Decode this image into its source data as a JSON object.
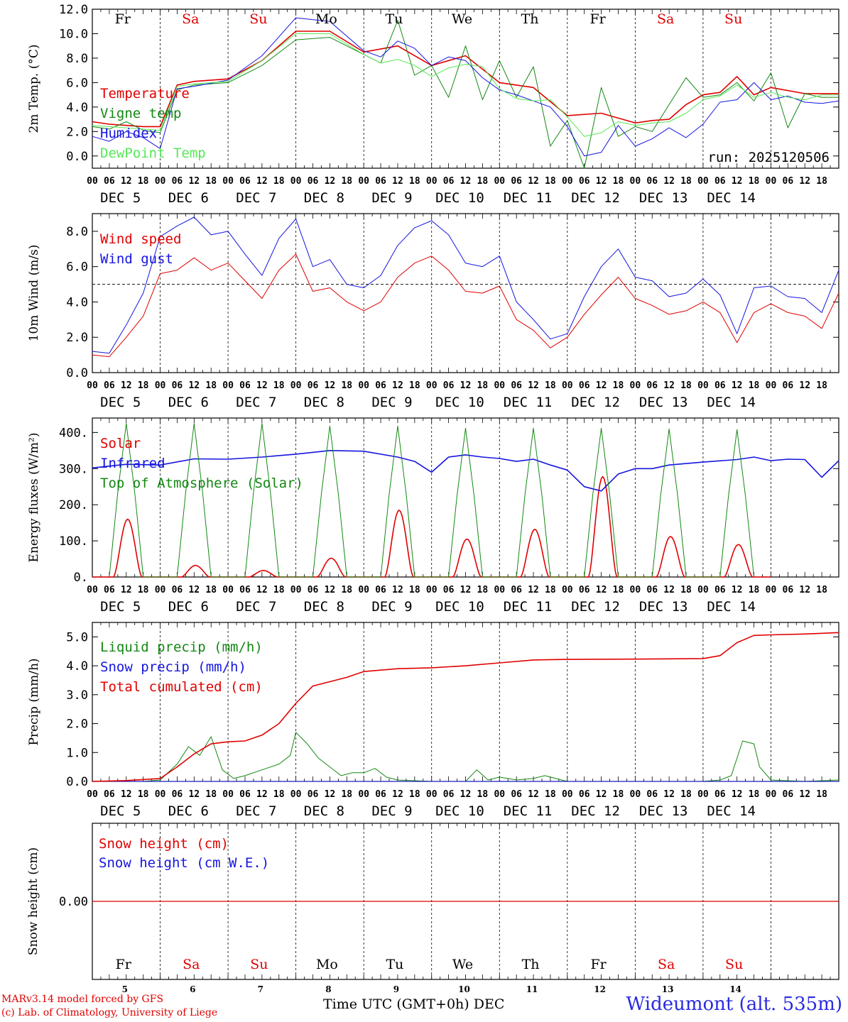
{
  "chart_data": [
    {
      "type": "line",
      "panel": "temperature",
      "ylabel": "2m Temp. (°C)",
      "ylim": [
        -1.0,
        12.0
      ],
      "yticks": [
        "0.0",
        "2.0",
        "4.0",
        "6.0",
        "8.0",
        "10.0",
        "12.0"
      ],
      "ytick_values": [
        0,
        2,
        4,
        6,
        8,
        10,
        12
      ],
      "annotation": "run: 2025120506",
      "series": [
        {
          "name": "Temperature",
          "color": "#e00000",
          "t": [
            0,
            6,
            12,
            18,
            24,
            30,
            36,
            48,
            60,
            72,
            84,
            96,
            108,
            120,
            132,
            144,
            156,
            168,
            180,
            192,
            198,
            204,
            210,
            216,
            222,
            228,
            234,
            240,
            252,
            264
          ],
          "values": [
            2.8,
            2.6,
            2.5,
            2.4,
            2.4,
            5.8,
            6.1,
            6.3,
            7.8,
            10.2,
            10.2,
            8.5,
            9.0,
            7.4,
            8.2,
            6.0,
            5.6,
            3.3,
            3.5,
            2.7,
            2.9,
            3.0,
            4.2,
            5.0,
            5.2,
            6.5,
            5.0,
            5.6,
            5.1,
            5.1
          ]
        },
        {
          "name": "Vigne temp",
          "color": "#138813",
          "t": [
            0,
            6,
            12,
            18,
            24,
            30,
            36,
            48,
            60,
            72,
            84,
            96,
            102,
            108,
            114,
            120,
            126,
            132,
            138,
            144,
            150,
            156,
            162,
            168,
            174,
            180,
            186,
            192,
            198,
            204,
            210,
            216,
            222,
            228,
            234,
            240,
            246,
            252,
            258,
            264
          ],
          "values": [
            2.4,
            2.2,
            2.8,
            2.1,
            1.9,
            5.4,
            5.8,
            6.0,
            7.4,
            9.5,
            9.7,
            8.3,
            7.6,
            11.1,
            6.6,
            7.4,
            4.8,
            9.0,
            4.6,
            7.8,
            4.8,
            7.3,
            0.8,
            2.9,
            -1.1,
            5.6,
            1.6,
            2.4,
            2.0,
            4.2,
            6.4,
            4.8,
            5.0,
            6.0,
            4.5,
            6.8,
            2.3,
            5.1,
            4.8,
            4.8
          ]
        },
        {
          "name": "Humidex",
          "color": "#1515e0",
          "t": [
            0,
            6,
            12,
            18,
            24,
            30,
            36,
            48,
            60,
            72,
            84,
            96,
            102,
            108,
            114,
            120,
            126,
            132,
            138,
            144,
            150,
            156,
            162,
            168,
            174,
            180,
            186,
            192,
            198,
            204,
            210,
            216,
            222,
            228,
            234,
            240,
            246,
            252,
            258,
            264
          ],
          "values": [
            1.6,
            1.2,
            2.0,
            1.5,
            0.6,
            5.5,
            5.7,
            6.2,
            8.2,
            11.3,
            11.0,
            8.6,
            8.1,
            9.4,
            8.8,
            7.4,
            8.1,
            7.8,
            6.4,
            5.4,
            5.0,
            4.5,
            4.0,
            2.4,
            0.0,
            0.3,
            2.5,
            0.8,
            1.4,
            2.3,
            1.5,
            2.6,
            4.4,
            4.6,
            6.0,
            4.6,
            4.9,
            4.4,
            4.3,
            4.5
          ]
        },
        {
          "name": "DewPoint Temp",
          "color": "#55e855",
          "t": [
            0,
            6,
            12,
            18,
            24,
            30,
            36,
            48,
            60,
            72,
            84,
            96,
            102,
            108,
            114,
            120,
            126,
            132,
            138,
            144,
            150,
            156,
            162,
            168,
            174,
            180,
            186,
            192,
            198,
            204,
            210,
            216,
            222,
            228,
            234,
            240,
            246,
            252,
            258,
            264
          ],
          "values": [
            2.5,
            2.4,
            2.3,
            2.2,
            2.1,
            5.7,
            5.9,
            6.1,
            7.8,
            10.0,
            10.0,
            8.3,
            7.6,
            7.9,
            7.4,
            6.5,
            7.2,
            7.5,
            7.3,
            5.5,
            4.7,
            4.5,
            4.6,
            3.2,
            1.6,
            1.9,
            2.8,
            2.5,
            2.7,
            2.8,
            3.5,
            4.6,
            4.9,
            5.8,
            4.8,
            5.2,
            4.8,
            4.6,
            5.0,
            5.0
          ]
        }
      ]
    },
    {
      "type": "line",
      "panel": "wind",
      "ylabel": "10m Wind (m/s)",
      "ylim": [
        0.0,
        9.0
      ],
      "yticks": [
        "0.0",
        "2.0",
        "4.0",
        "6.0",
        "8.0"
      ],
      "ytick_values": [
        0,
        2,
        4,
        6,
        8
      ],
      "reference_line": 5.0,
      "series": [
        {
          "name": "Wind speed",
          "color": "#e00000",
          "t": [
            0,
            6,
            12,
            18,
            24,
            30,
            36,
            42,
            48,
            54,
            60,
            66,
            72,
            78,
            84,
            90,
            96,
            102,
            108,
            114,
            120,
            126,
            132,
            138,
            144,
            150,
            156,
            162,
            168,
            174,
            180,
            186,
            192,
            198,
            204,
            210,
            216,
            222,
            228,
            234,
            240,
            246,
            252,
            258,
            264
          ],
          "values": [
            1.0,
            0.9,
            2.0,
            3.2,
            5.6,
            5.8,
            6.5,
            5.8,
            6.2,
            5.2,
            4.2,
            5.8,
            6.7,
            4.6,
            4.8,
            4.0,
            3.5,
            4.0,
            5.4,
            6.2,
            6.6,
            5.8,
            4.6,
            4.5,
            4.9,
            3.0,
            2.4,
            1.4,
            2.0,
            3.3,
            4.4,
            5.4,
            4.2,
            3.8,
            3.3,
            3.5,
            4.0,
            3.4,
            1.7,
            3.4,
            3.9,
            3.4,
            3.2,
            2.5,
            4.5
          ]
        },
        {
          "name": "Wind gust",
          "color": "#1515e0",
          "t": [
            0,
            6,
            12,
            18,
            24,
            30,
            36,
            42,
            48,
            54,
            60,
            66,
            72,
            78,
            84,
            90,
            96,
            102,
            108,
            114,
            120,
            126,
            132,
            138,
            144,
            150,
            156,
            162,
            168,
            174,
            180,
            186,
            192,
            198,
            204,
            210,
            216,
            222,
            228,
            234,
            240,
            246,
            252,
            258,
            264
          ],
          "values": [
            1.2,
            1.1,
            2.7,
            4.5,
            7.7,
            8.3,
            8.8,
            7.8,
            8.0,
            6.7,
            5.5,
            7.6,
            8.7,
            6.0,
            6.4,
            5.0,
            4.8,
            5.5,
            7.2,
            8.2,
            8.6,
            7.8,
            6.2,
            6.0,
            6.6,
            4.0,
            3.0,
            1.9,
            2.2,
            4.3,
            6.0,
            7.0,
            5.4,
            5.2,
            4.3,
            4.5,
            5.3,
            4.4,
            2.2,
            4.8,
            4.9,
            4.3,
            4.2,
            3.4,
            5.8
          ]
        }
      ]
    },
    {
      "type": "line",
      "panel": "energy",
      "ylabel": "Energy fluxes (W/m²)",
      "ylim": [
        0,
        440
      ],
      "yticks": [
        "0.",
        "100.",
        "200.",
        "300.",
        "400."
      ],
      "ytick_values": [
        0,
        100,
        200,
        300,
        400
      ],
      "series": [
        {
          "name": "Solar",
          "color": "#e00000",
          "peaks": [
            160,
            32,
            18,
            52,
            185,
            105,
            132,
            278,
            112,
            90
          ]
        },
        {
          "name": "Infrared",
          "color": "#1515e0",
          "t": [
            0,
            12,
            24,
            36,
            48,
            60,
            72,
            84,
            96,
            108,
            114,
            120,
            126,
            132,
            138,
            144,
            150,
            156,
            162,
            168,
            174,
            180,
            186,
            192,
            198,
            204,
            216,
            228,
            234,
            240,
            246,
            252,
            258,
            264
          ],
          "values": [
            302,
            312,
            310,
            327,
            326,
            332,
            340,
            350,
            348,
            332,
            320,
            290,
            332,
            338,
            332,
            328,
            320,
            326,
            310,
            296,
            250,
            238,
            285,
            300,
            300,
            310,
            318,
            325,
            332,
            322,
            326,
            325,
            276,
            322
          ]
        },
        {
          "name": "Top of Atmosphere (Solar)",
          "color": "#138813",
          "peaks": [
            425,
            425,
            425,
            418,
            418,
            412,
            412,
            412,
            410,
            408
          ]
        }
      ]
    },
    {
      "type": "line",
      "panel": "precip",
      "ylabel": "Precip (mm/h)",
      "ylim": [
        0.0,
        5.5
      ],
      "yticks": [
        "0.0",
        "1.0",
        "2.0",
        "3.0",
        "4.0",
        "5.0"
      ],
      "ytick_values": [
        0,
        1,
        2,
        3,
        4,
        5
      ],
      "series": [
        {
          "name": "Liquid precip (mm/h)",
          "color": "#138813",
          "t": [
            0,
            18,
            24,
            30,
            34,
            38,
            42,
            46,
            50,
            54,
            60,
            66,
            70,
            72,
            76,
            80,
            84,
            88,
            92,
            96,
            100,
            104,
            108,
            120,
            132,
            136,
            140,
            144,
            150,
            156,
            160,
            168,
            192,
            204,
            216,
            222,
            226,
            230,
            234,
            236,
            240,
            252,
            264
          ],
          "values": [
            0,
            0,
            0.05,
            0.6,
            1.2,
            0.9,
            1.55,
            0.4,
            0.1,
            0.2,
            0.4,
            0.6,
            0.9,
            1.7,
            1.3,
            0.8,
            0.5,
            0.2,
            0.3,
            0.3,
            0.45,
            0.15,
            0.05,
            0,
            0,
            0.4,
            0.05,
            0.15,
            0.05,
            0.1,
            0.2,
            0,
            0,
            0,
            0,
            0.05,
            0.2,
            1.4,
            1.3,
            0.5,
            0.05,
            0,
            0.05
          ]
        },
        {
          "name": "Snow precip (mm/h)",
          "color": "#1515e0",
          "t": [
            0,
            264
          ],
          "values": [
            0,
            0
          ]
        },
        {
          "name": "Total cumulated (cm)",
          "color": "#e00000",
          "t": [
            0,
            12,
            24,
            30,
            36,
            42,
            48,
            54,
            60,
            66,
            72,
            78,
            84,
            90,
            96,
            108,
            120,
            132,
            144,
            156,
            168,
            192,
            216,
            222,
            228,
            234,
            240,
            252,
            264
          ],
          "values": [
            0,
            0.03,
            0.1,
            0.5,
            0.95,
            1.3,
            1.37,
            1.4,
            1.6,
            2.0,
            2.7,
            3.3,
            3.45,
            3.6,
            3.8,
            3.9,
            3.93,
            4.0,
            4.1,
            4.2,
            4.22,
            4.23,
            4.25,
            4.35,
            4.8,
            5.05,
            5.07,
            5.1,
            5.15
          ]
        }
      ]
    },
    {
      "type": "line",
      "panel": "snow",
      "ylabel": "Snow height (cm)",
      "ylim": [
        -1,
        1
      ],
      "yticks": [
        "0.00"
      ],
      "ytick_values": [
        0
      ],
      "series": [
        {
          "name": "Snow height (cm)",
          "color": "#e00000",
          "t": [
            0,
            264
          ],
          "values": [
            0,
            0
          ]
        },
        {
          "name": "Snow height (cm W.E.)",
          "color": "#1515e0",
          "t": [
            0,
            264
          ],
          "values": [
            0,
            0
          ]
        }
      ]
    }
  ],
  "axis": {
    "hour_ticks": [
      "00",
      "06",
      "12",
      "18"
    ],
    "end_tick": "00",
    "dates": [
      "DEC  5",
      "DEC  6",
      "DEC  7",
      "DEC  8",
      "DEC  9",
      "DEC 10",
      "DEC 11",
      "DEC 12",
      "DEC 13",
      "DEC 14"
    ],
    "day_names": [
      "Fr",
      "Sa",
      "Su",
      "Mo",
      "Tu",
      "We",
      "Th",
      "Fr",
      "Sa",
      "Su"
    ],
    "day_colors": [
      "#000000",
      "#e00000",
      "#e00000",
      "#000000",
      "#000000",
      "#000000",
      "#000000",
      "#000000",
      "#e00000",
      "#e00000"
    ],
    "day_numbers": [
      "5",
      "6",
      "7",
      "8",
      "9",
      "10",
      "11",
      "12",
      "13",
      "14"
    ],
    "xlabel": "Time UTC (GMT+0h)",
    "xlabel_month": "DEC"
  },
  "footer": {
    "credit_line1": "MARv3.14 model forced by GFS",
    "credit_line2": "(c) Lab. of Climatology, University of Liege",
    "station": "Wideumont (alt. 535m)"
  }
}
